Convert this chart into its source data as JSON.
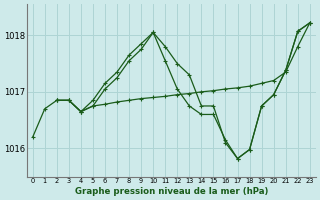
{
  "title": "Graphe pression niveau de la mer (hPa)",
  "background_color": "#ceeaea",
  "grid_color": "#aed4d4",
  "line_color": "#1a5c1a",
  "xlim": [
    -0.5,
    23.5
  ],
  "ylim": [
    1015.5,
    1018.55
  ],
  "yticks": [
    1016,
    1017,
    1018
  ],
  "xticks": [
    0,
    1,
    2,
    3,
    4,
    5,
    6,
    7,
    8,
    9,
    10,
    11,
    12,
    13,
    14,
    15,
    16,
    17,
    18,
    19,
    20,
    21,
    22,
    23
  ],
  "series": [
    {
      "x": [
        0,
        1,
        2,
        3,
        4,
        5,
        6,
        7,
        8,
        9,
        10,
        11,
        12,
        13,
        14,
        15,
        16,
        17,
        18,
        19,
        20,
        21,
        22,
        23
      ],
      "y": [
        1016.2,
        1016.7,
        1016.85,
        1016.85,
        1016.65,
        1016.85,
        1017.15,
        1017.35,
        1017.65,
        1017.85,
        1018.05,
        1017.8,
        1017.5,
        1017.3,
        1016.75,
        1016.75,
        1016.1,
        1015.82,
        1015.98,
        1016.75,
        1016.95,
        1017.38,
        1018.07,
        1018.22
      ]
    },
    {
      "x": [
        2,
        3,
        4,
        5,
        6,
        7,
        8,
        9,
        10,
        11,
        12,
        13,
        14,
        15,
        16,
        17,
        18,
        19,
        20,
        21,
        22,
        23
      ],
      "y": [
        1016.85,
        1016.85,
        1016.65,
        1016.75,
        1016.78,
        1016.82,
        1016.85,
        1016.88,
        1016.9,
        1016.92,
        1016.95,
        1016.97,
        1017.0,
        1017.02,
        1017.05,
        1017.07,
        1017.1,
        1017.15,
        1017.2,
        1017.35,
        1017.8,
        1018.22
      ]
    },
    {
      "x": [
        2,
        3,
        4,
        5,
        6,
        7,
        8,
        9,
        10,
        11,
        12,
        13,
        14,
        15,
        16,
        17,
        18,
        19,
        20,
        21,
        22,
        23
      ],
      "y": [
        1016.85,
        1016.85,
        1016.65,
        1016.75,
        1017.05,
        1017.25,
        1017.55,
        1017.75,
        1018.05,
        1017.55,
        1017.05,
        1016.75,
        1016.6,
        1016.6,
        1016.15,
        1015.82,
        1015.98,
        1016.75,
        1016.95,
        1017.38,
        1018.07,
        1018.22
      ]
    }
  ]
}
